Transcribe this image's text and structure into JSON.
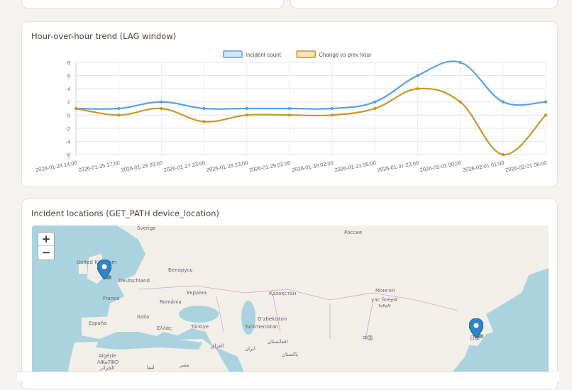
{
  "trend_card": {
    "title": "Hour-over-hour trend (LAG window)"
  },
  "map_card": {
    "title": "Incident locations (GET_PATH device_location)",
    "zoom_in": "+",
    "zoom_out": "−",
    "labels": {
      "sverige": "Sverige",
      "rossiya": "Россия",
      "uk": "United Kingdom",
      "belarus": "Беларусь",
      "deutschland": "Deutschland",
      "ukraina": "Україна",
      "france": "France",
      "romania": "România",
      "kazakhstan": "Қазақстан",
      "mongol": "Монгол",
      "mongol2": "улс ᠮᠣᠩᠭᠣᠯ",
      "mongol3": "ᠤᠯᠤᠰ",
      "italia": "Italia",
      "espana": "España",
      "ellas": "Ελλάς",
      "turkiye": "Türkiye",
      "uzbekiston": "O‘zbekiston",
      "turkmenistan": "Turkmenistan",
      "afghanistan": "افغانستان",
      "iraq": "العراق",
      "iran": "ایران",
      "pakistan": "پاکستان",
      "china": "中国",
      "japan": "日本",
      "algerie": "Algérie",
      "algerie2": "ⴷⵣⴰⵢⴻⵔ",
      "algerie3": "الجزائر",
      "libya": "ليبيا",
      "misr": "مصر"
    }
  },
  "colors": {
    "series1": "#5aa0e6",
    "series2": "#c9962b",
    "marker": "#2f84c8"
  },
  "chart_data": {
    "type": "line",
    "categories": [
      "2026-01-24 14:00",
      "2026-01-25 17:00",
      "2026-01-26 20:00",
      "2026-01-27 23:00",
      "2026-01-28 23:00",
      "2026-01-29 02:00",
      "2026-01-30 02:00",
      "2026-01-31 05:00",
      "2026-01-31 23:00",
      "2026-02-01 00:00",
      "2026-02-01 01:00",
      "2026-02-01 08:00"
    ],
    "series": [
      {
        "name": "Incident count",
        "values": [
          1,
          1,
          2,
          1,
          1,
          1,
          1,
          2,
          6,
          8,
          2,
          2
        ]
      },
      {
        "name": "Change vs prev hour",
        "values": [
          1,
          0,
          1,
          -1,
          0,
          0,
          0,
          1,
          4,
          2,
          -6,
          0
        ]
      }
    ],
    "ylim": [
      -6,
      8
    ],
    "yticks": [
      8,
      6,
      4,
      2,
      0,
      -2,
      -4,
      -6
    ],
    "legend": "top-center",
    "grid": true
  }
}
